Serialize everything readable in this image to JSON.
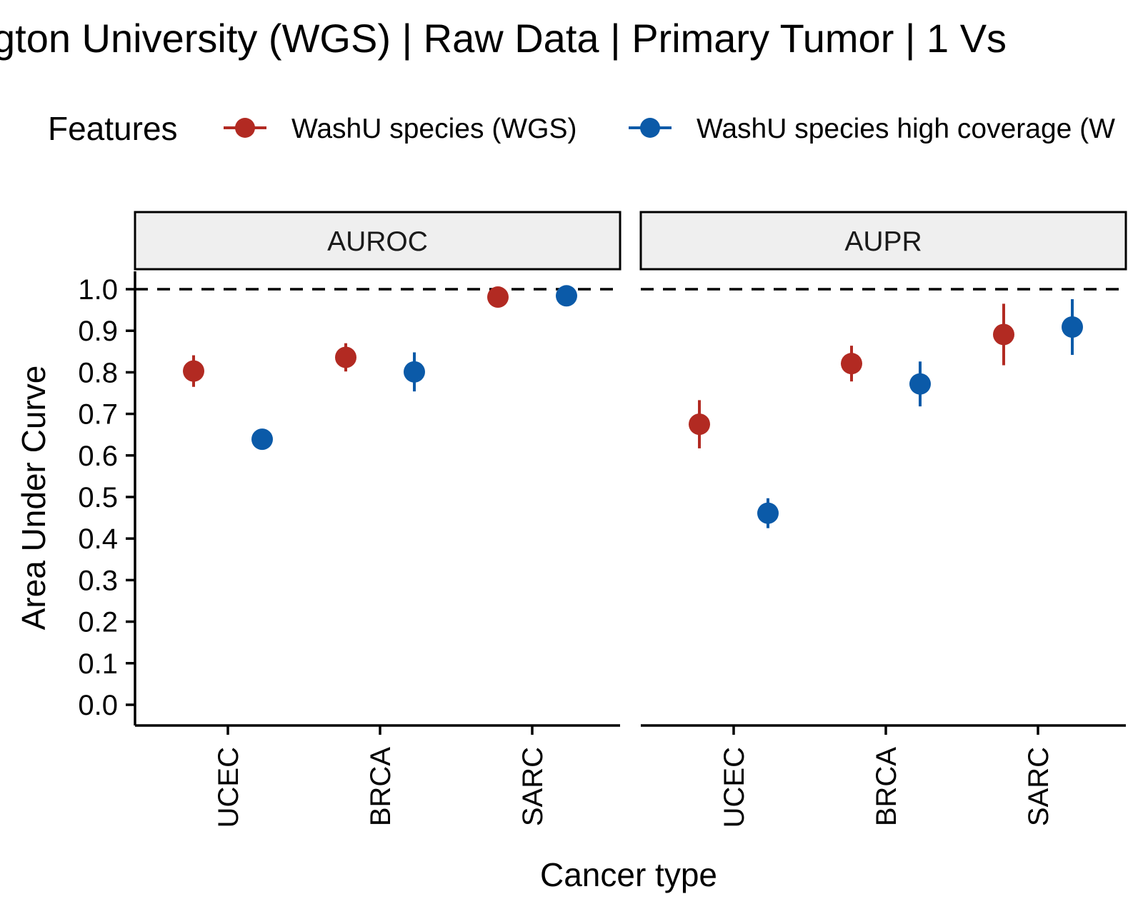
{
  "chart_data": {
    "type": "scatter",
    "title": "gton University (WGS) | Raw Data | Primary Tumor | 1 Vs",
    "xlabel": "Cancer type",
    "ylabel": "Area Under Curve",
    "ylim": [
      0,
      1
    ],
    "yticks": [
      "0.0",
      "0.1",
      "0.2",
      "0.3",
      "0.4",
      "0.5",
      "0.6",
      "0.7",
      "0.8",
      "0.9",
      "1.0"
    ],
    "reference_line": 1.0,
    "categories": [
      "UCEC",
      "BRCA",
      "SARC"
    ],
    "legend": {
      "title": "Features",
      "placement": "top",
      "items": [
        {
          "label": "WashU species (WGS)",
          "color": "#B22A22"
        },
        {
          "label": "WashU species high coverage (W",
          "color": "#0B5AA8"
        }
      ]
    },
    "panels": [
      {
        "name": "AUROC",
        "series": [
          {
            "color": "#B22A22",
            "values": [
              0.803,
              0.836,
              0.981
            ],
            "lower": [
              0.765,
              0.802,
              0.981
            ],
            "upper": [
              0.841,
              0.87,
              0.981
            ]
          },
          {
            "color": "#0B5AA8",
            "values": [
              0.639,
              0.801,
              0.984
            ],
            "lower": [
              0.639,
              0.754,
              0.984
            ],
            "upper": [
              0.639,
              0.848,
              0.984
            ]
          }
        ]
      },
      {
        "name": "AUPR",
        "series": [
          {
            "color": "#B22A22",
            "values": [
              0.675,
              0.821,
              0.891
            ],
            "lower": [
              0.617,
              0.778,
              0.817
            ],
            "upper": [
              0.733,
              0.864,
              0.965
            ]
          },
          {
            "color": "#0B5AA8",
            "values": [
              0.461,
              0.772,
              0.909
            ],
            "lower": [
              0.425,
              0.718,
              0.842
            ],
            "upper": [
              0.497,
              0.826,
              0.976
            ]
          }
        ]
      }
    ]
  }
}
